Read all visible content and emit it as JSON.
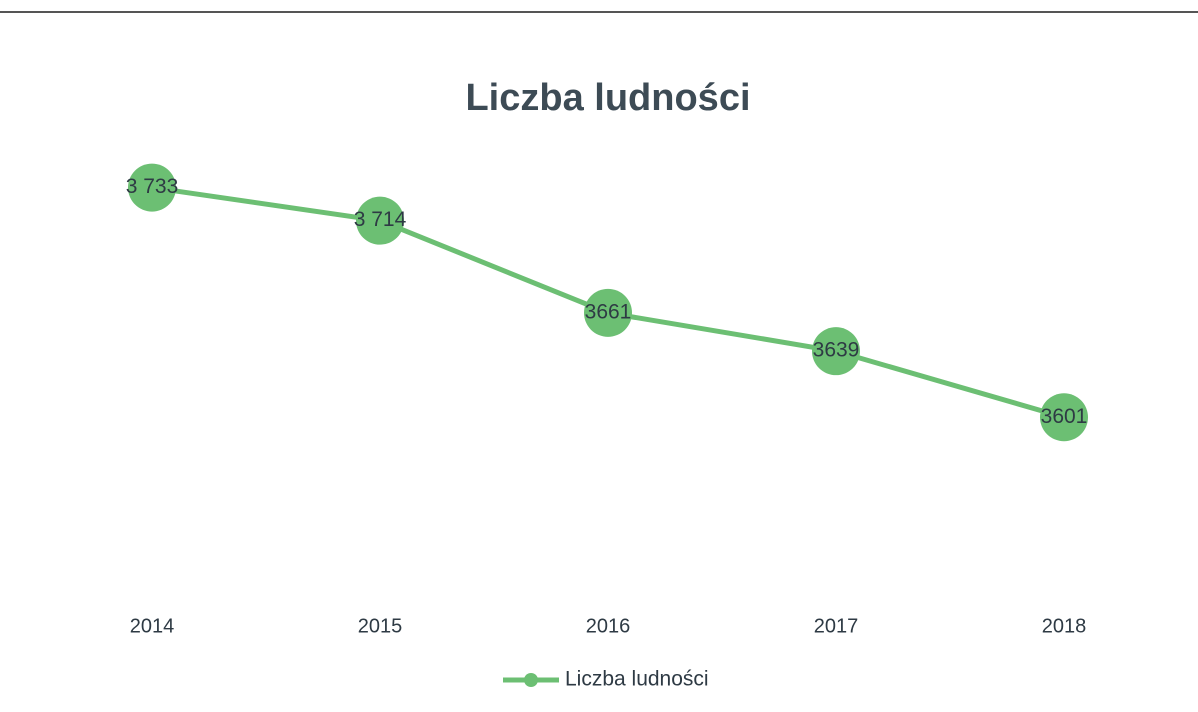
{
  "chart_data": {
    "type": "line",
    "title": "Liczba ludności",
    "categories": [
      "2014",
      "2015",
      "2016",
      "2017",
      "2018"
    ],
    "series": [
      {
        "name": "Liczba ludności",
        "color": "#6cbf73",
        "values": [
          3733,
          3714,
          3661,
          3639,
          3601
        ],
        "value_labels": [
          "3 733",
          "3 714",
          "3661",
          "3639",
          "3601"
        ]
      }
    ],
    "ylim": [
      3550,
      3750
    ],
    "legend": "bottom"
  }
}
